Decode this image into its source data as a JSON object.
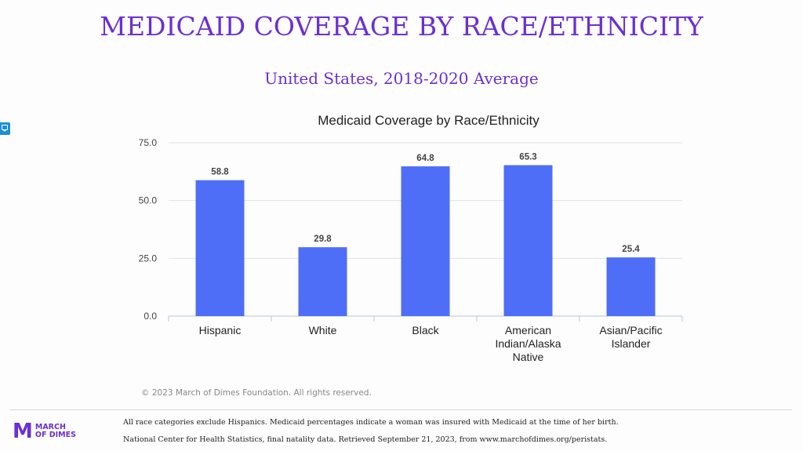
{
  "page": {
    "title": "MEDICAID COVERAGE BY RACE/ETHNICITY",
    "subtitle": "United States, 2018-2020 Average",
    "copyright": "© 2023 March of Dimes Foundation. All rights reserved.",
    "logo_mark": "M",
    "logo_line1": "MARCH",
    "logo_line2": "OF DIMES",
    "footnote1": "All race categories exclude Hispanics. Medicaid percentages indicate a woman was insured with Medicaid at the time of her birth.",
    "footnote2": "National Center for Health Statistics, final natality data. Retrieved September 21, 2023, from www.marchofdimes.org/peristats."
  },
  "chart_data": {
    "type": "bar",
    "title": "Medicaid Coverage by Race/Ethnicity",
    "categories": [
      [
        "Hispanic"
      ],
      [
        "White"
      ],
      [
        "Black"
      ],
      [
        "American",
        "Indian/Alaska",
        "Native"
      ],
      [
        "Asian/Pacific",
        "Islander"
      ]
    ],
    "values": [
      58.8,
      29.8,
      64.8,
      65.3,
      25.4
    ],
    "value_labels": [
      "58.8",
      "29.8",
      "64.8",
      "65.3",
      "25.4"
    ],
    "yticks": [
      "0.0",
      "25.0",
      "50.0",
      "75.0"
    ],
    "ylim": [
      0,
      75
    ],
    "bar_color": "#4f6ef7",
    "grid": true,
    "legend": "none"
  }
}
